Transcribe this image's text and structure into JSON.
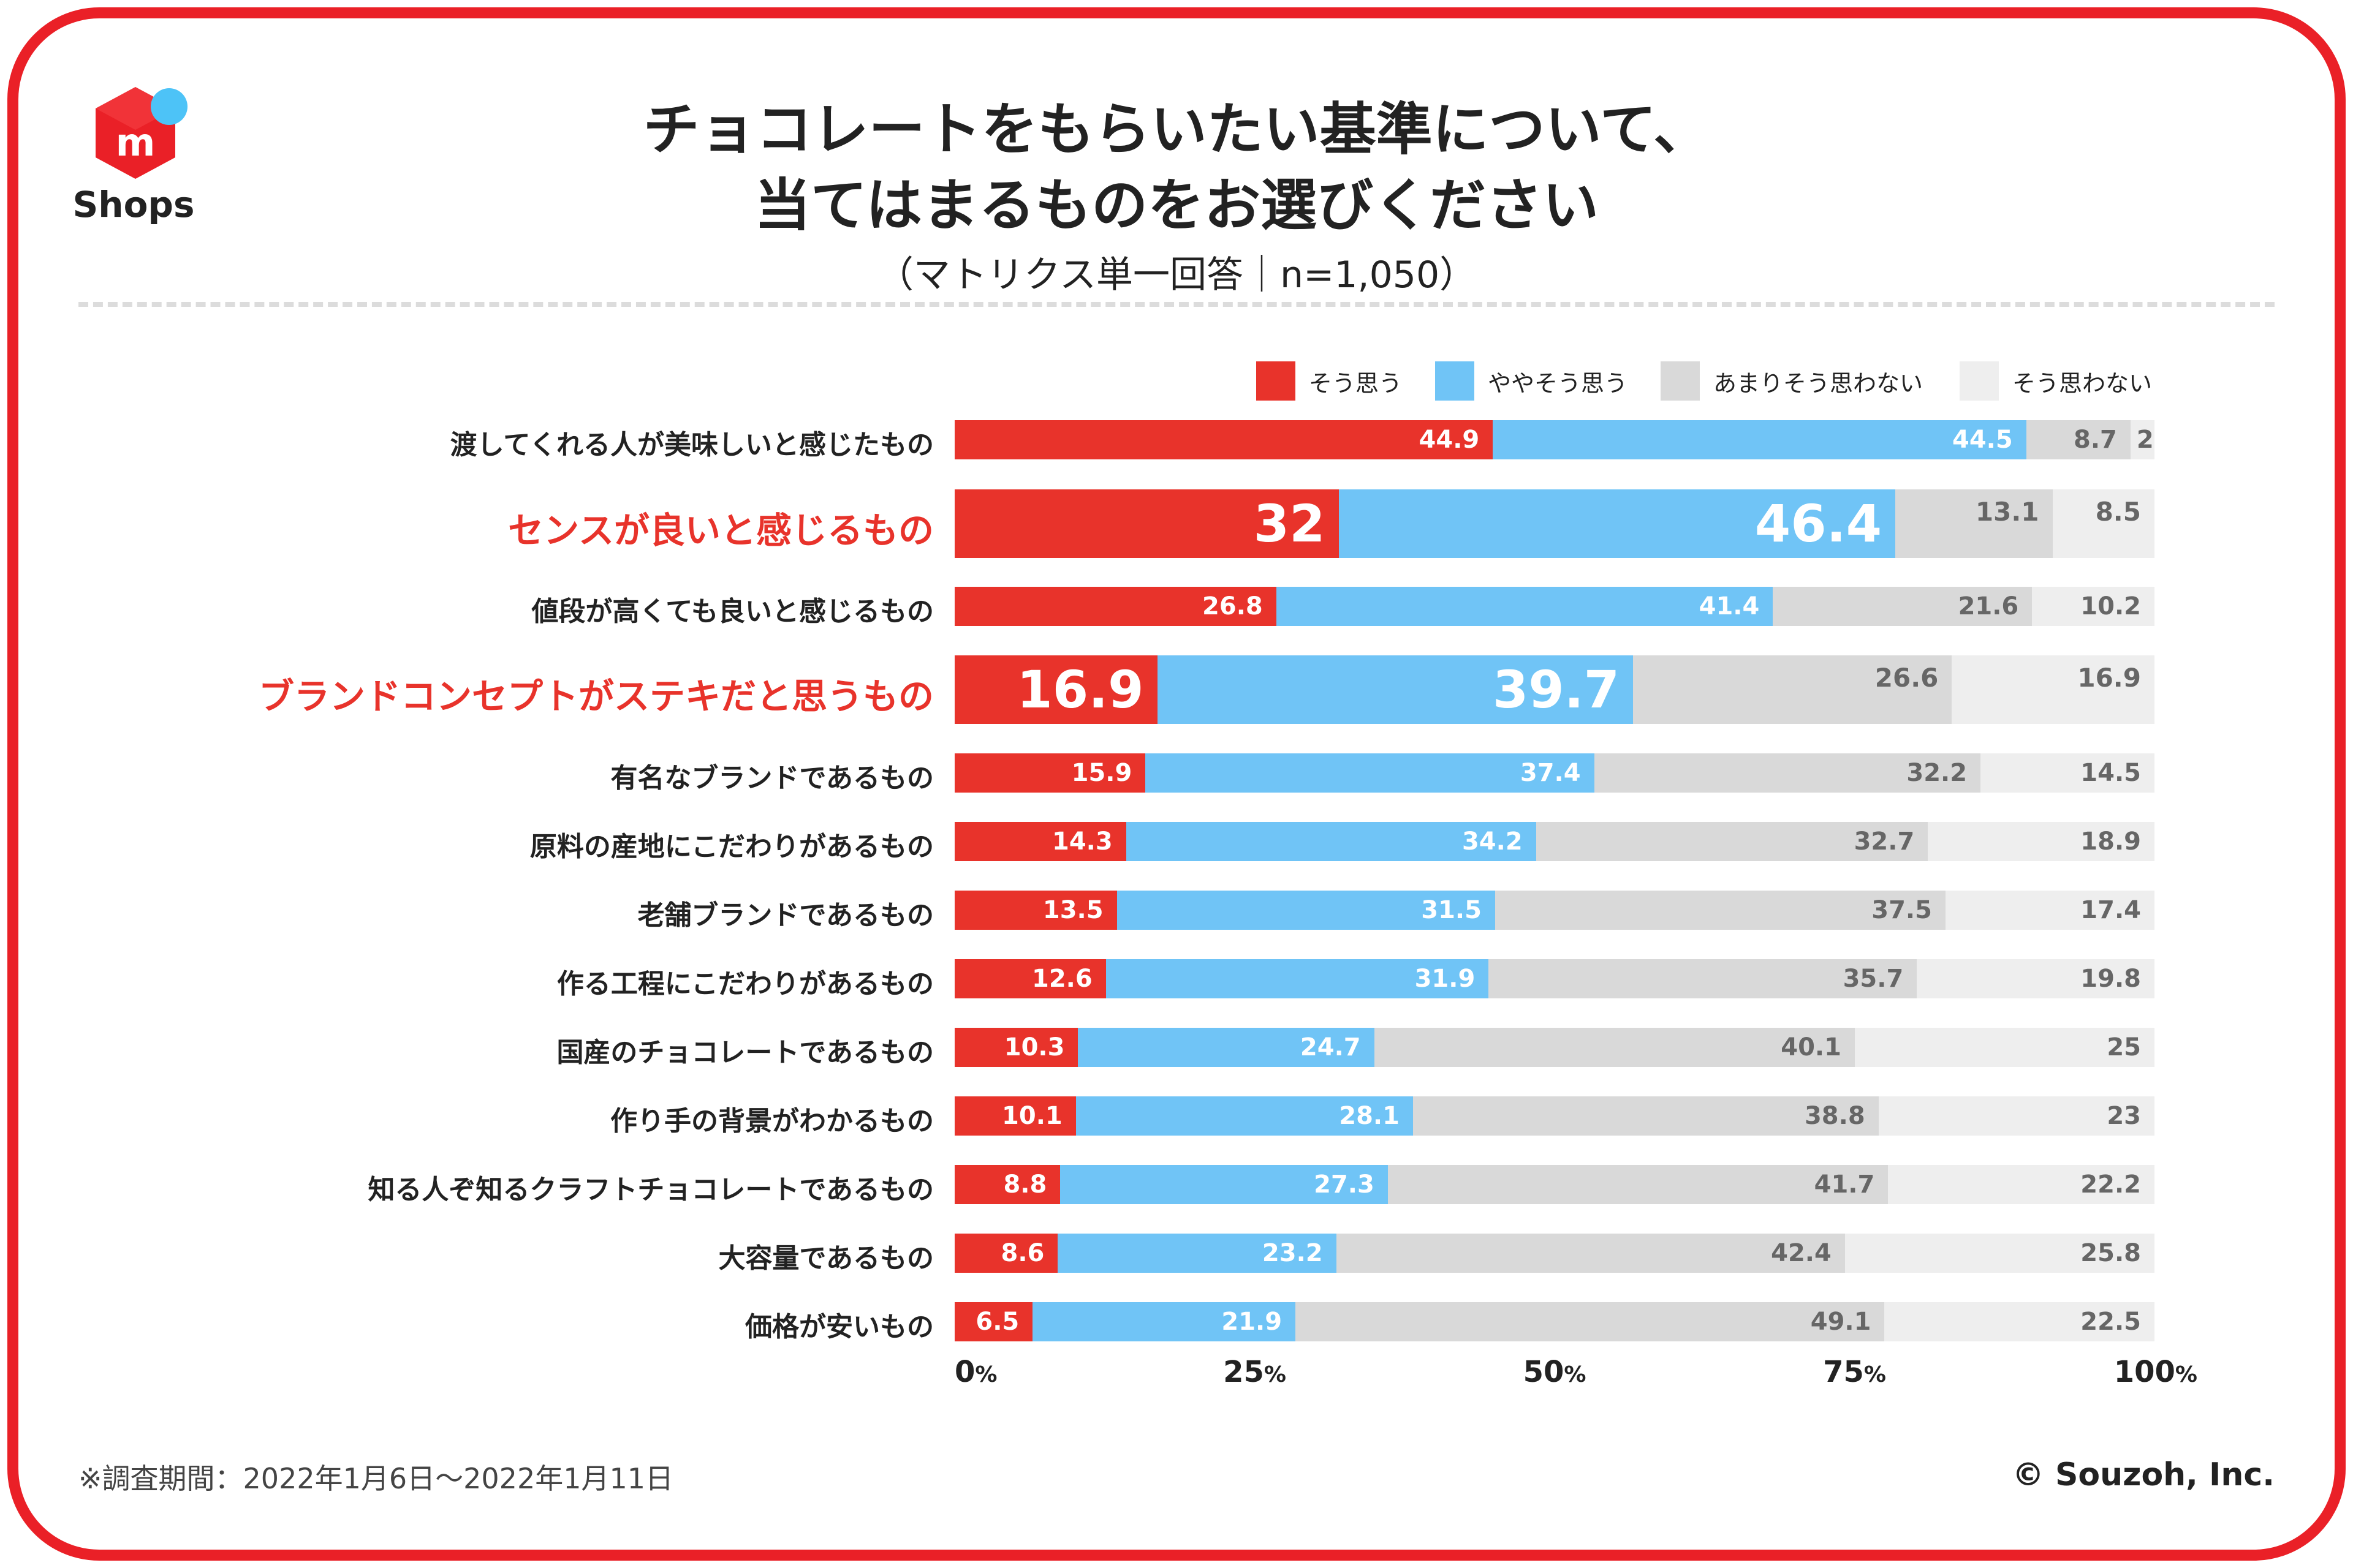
{
  "brand": {
    "name": "Shops",
    "mark": "m"
  },
  "title": {
    "line1": "チョコレートをもらいたい基準について、",
    "line2": "当てはまるものをお選びください"
  },
  "subtitle": "（マトリクス単一回答｜n=1,050）",
  "footnote": "※調査期間：2022年1月6日〜2022年1月11日",
  "copyright": "© Souzoh, Inc.",
  "colors": {
    "frame": "#ea2027",
    "series": [
      "#e8332b",
      "#70c4f6",
      "#d9d9d9",
      "#eeeeee"
    ],
    "label_text": [
      "#ffffff",
      "#ffffff",
      "#666666",
      "#666666"
    ],
    "highlight_label": "#e8332b"
  },
  "chart_data": {
    "type": "bar",
    "orientation": "horizontal",
    "stacked": true,
    "xlim": [
      0,
      100
    ],
    "x_ticks": [
      {
        "num": "0",
        "unit": "%"
      },
      {
        "num": "25",
        "unit": "%"
      },
      {
        "num": "50",
        "unit": "%"
      },
      {
        "num": "75",
        "unit": "%"
      },
      {
        "num": "100",
        "unit": "%"
      }
    ],
    "series_names": [
      "そう思う",
      "ややそう思う",
      "あまりそう思わない",
      "そう思わない"
    ],
    "legend_position": "top-right",
    "rows": [
      {
        "label": "渡してくれる人が美味しいと感じたもの",
        "values": [
          "44.9",
          "44.5",
          "8.7",
          "2"
        ],
        "highlight": false
      },
      {
        "label": "センスが良いと感じるもの",
        "values": [
          "32",
          "46.4",
          "13.1",
          "8.5"
        ],
        "highlight": true
      },
      {
        "label": "値段が高くても良いと感じるもの",
        "values": [
          "26.8",
          "41.4",
          "21.6",
          "10.2"
        ],
        "highlight": false
      },
      {
        "label": "ブランドコンセプトがステキだと思うもの",
        "values": [
          "16.9",
          "39.7",
          "26.6",
          "16.9"
        ],
        "highlight": true
      },
      {
        "label": "有名なブランドであるもの",
        "values": [
          "15.9",
          "37.4",
          "32.2",
          "14.5"
        ],
        "highlight": false
      },
      {
        "label": "原料の産地にこだわりがあるもの",
        "values": [
          "14.3",
          "34.2",
          "32.7",
          "18.9"
        ],
        "highlight": false
      },
      {
        "label": "老舗ブランドであるもの",
        "values": [
          "13.5",
          "31.5",
          "37.5",
          "17.4"
        ],
        "highlight": false
      },
      {
        "label": "作る工程にこだわりがあるもの",
        "values": [
          "12.6",
          "31.9",
          "35.7",
          "19.8"
        ],
        "highlight": false
      },
      {
        "label": "国産のチョコレートであるもの",
        "values": [
          "10.3",
          "24.7",
          "40.1",
          "25"
        ],
        "highlight": false
      },
      {
        "label": "作り手の背景がわかるもの",
        "values": [
          "10.1",
          "28.1",
          "38.8",
          "23"
        ],
        "highlight": false
      },
      {
        "label": "知る人ぞ知るクラフトチョコレートであるもの",
        "values": [
          "8.8",
          "27.3",
          "41.7",
          "22.2"
        ],
        "highlight": false
      },
      {
        "label": "大容量であるもの",
        "values": [
          "8.6",
          "23.2",
          "42.4",
          "25.8"
        ],
        "highlight": false
      },
      {
        "label": "価格が安いもの",
        "values": [
          "6.5",
          "21.9",
          "49.1",
          "22.5"
        ],
        "highlight": false
      }
    ]
  }
}
